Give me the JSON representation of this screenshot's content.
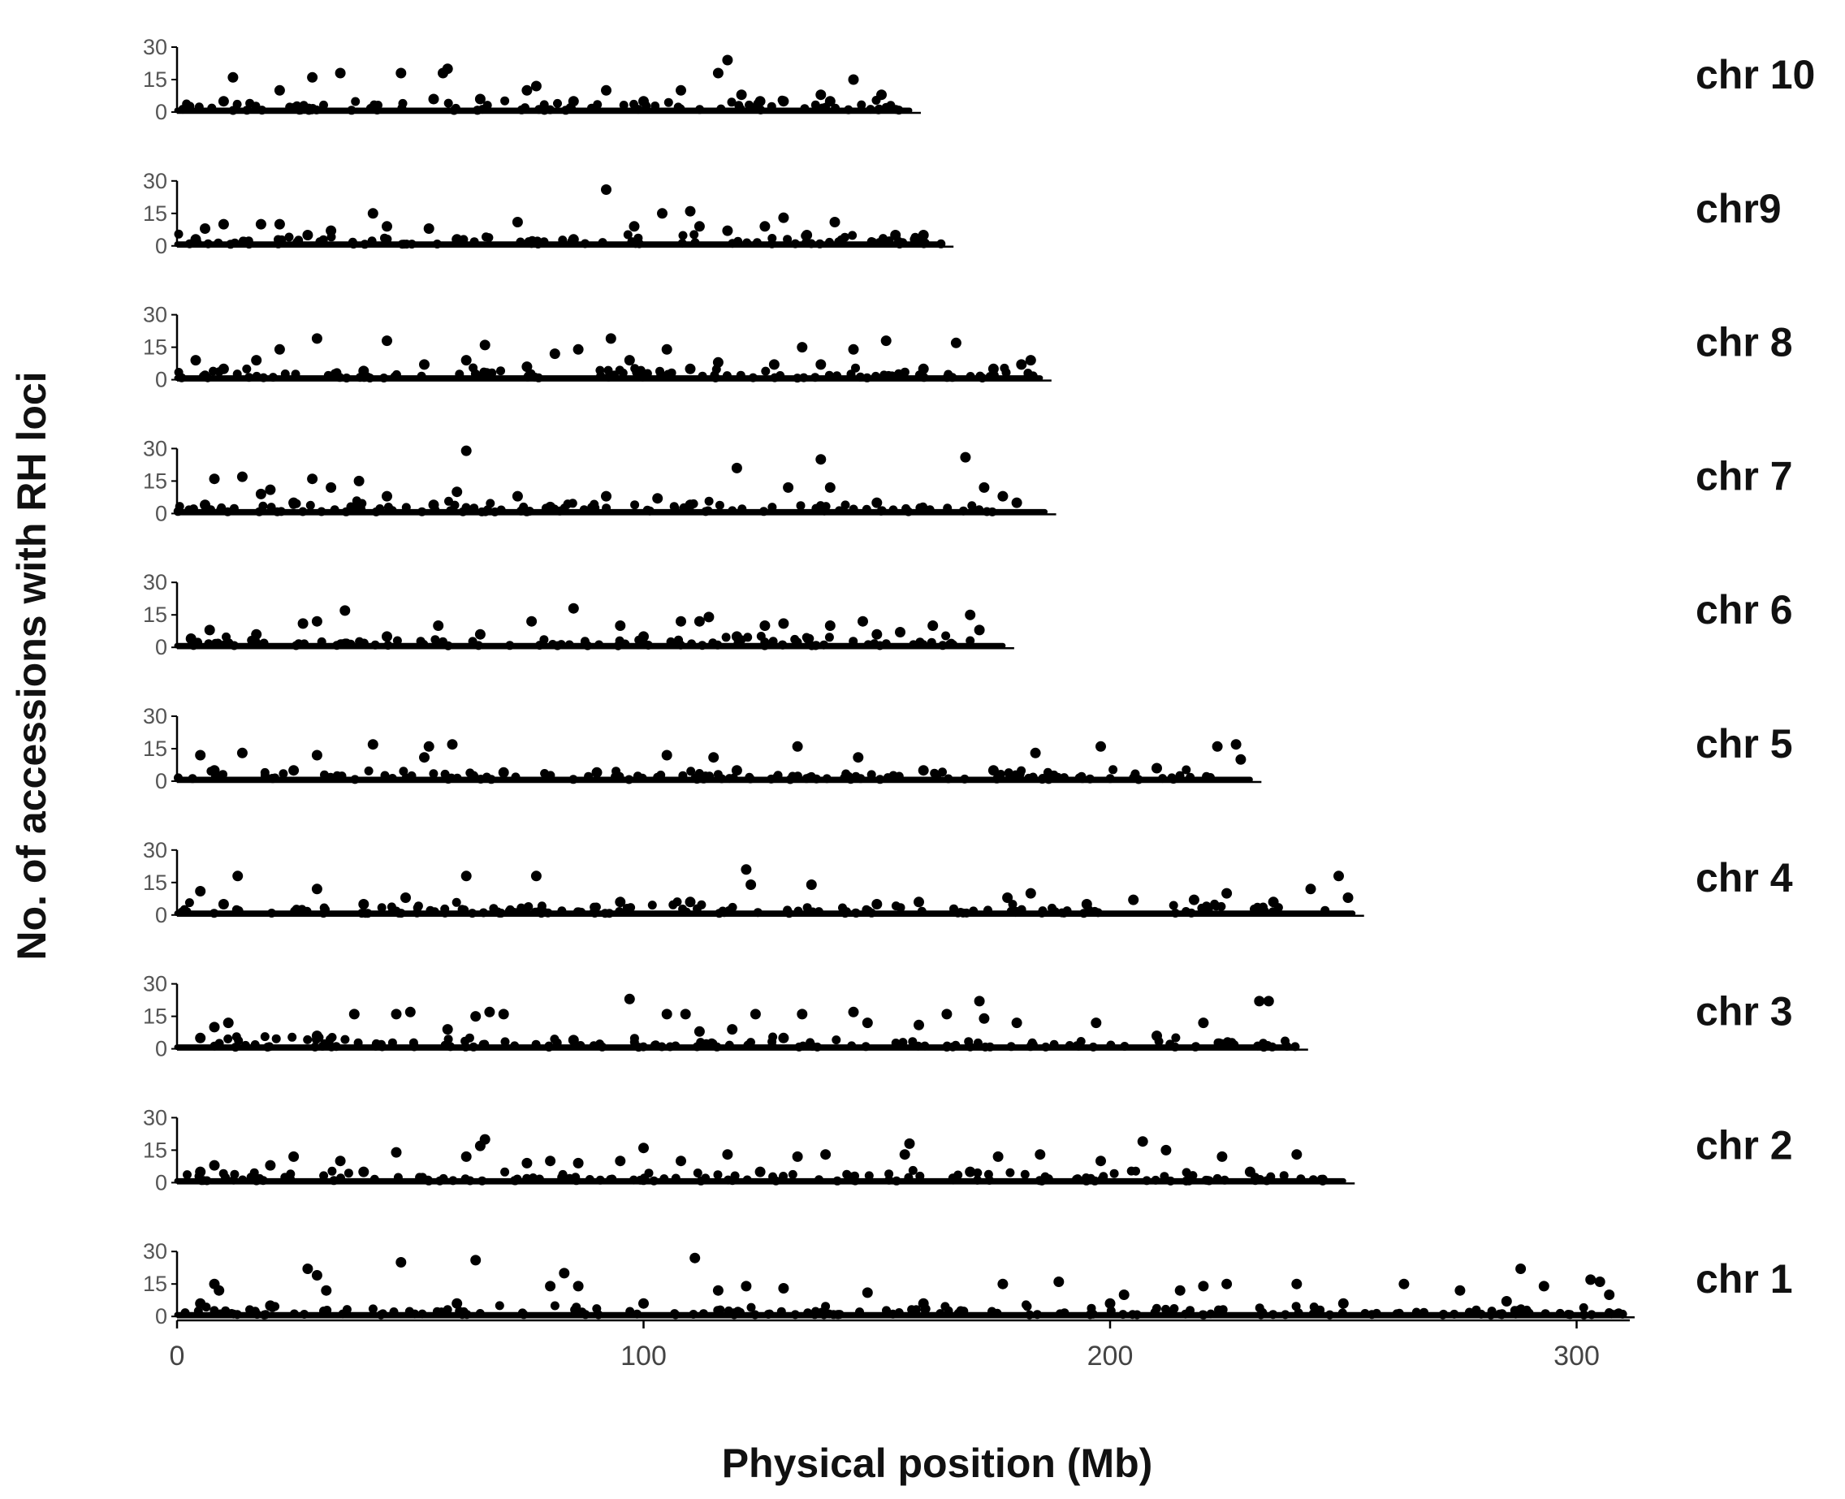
{
  "chart_data": {
    "type": "scatter",
    "xlabel": "Physical position (Mb)",
    "ylabel": "No. of accessions with RH loci",
    "xlim": [
      0,
      310
    ],
    "ylim": [
      0,
      30
    ],
    "x_ticks": [
      "0",
      "100",
      "200",
      "300"
    ],
    "y_ticks": [
      "0",
      "15",
      "30"
    ],
    "grid": false,
    "colors": {
      "point": "#000000",
      "axis": "#000000"
    },
    "series": [
      {
        "name": "chr 10",
        "length": 157,
        "points": [
          [
            12,
            16
          ],
          [
            29,
            16
          ],
          [
            35,
            18
          ],
          [
            48,
            18
          ],
          [
            57,
            18
          ],
          [
            58,
            20
          ],
          [
            116,
            18
          ],
          [
            118,
            24
          ],
          [
            121,
            8
          ],
          [
            145,
            15
          ],
          [
            22,
            10
          ],
          [
            75,
            10
          ],
          [
            77,
            12
          ],
          [
            92,
            10
          ],
          [
            108,
            10
          ],
          [
            130,
            5
          ],
          [
            138,
            8
          ],
          [
            151,
            8
          ],
          [
            10,
            5
          ],
          [
            55,
            6
          ],
          [
            65,
            6
          ],
          [
            85,
            5
          ],
          [
            100,
            5
          ],
          [
            125,
            5
          ],
          [
            140,
            5
          ]
        ]
      },
      {
        "name": "chr9",
        "length": 164,
        "points": [
          [
            6,
            8
          ],
          [
            10,
            10
          ],
          [
            18,
            10
          ],
          [
            22,
            10
          ],
          [
            33,
            7
          ],
          [
            42,
            15
          ],
          [
            45,
            9
          ],
          [
            54,
            8
          ],
          [
            73,
            11
          ],
          [
            92,
            26
          ],
          [
            98,
            9
          ],
          [
            104,
            15
          ],
          [
            110,
            16
          ],
          [
            112,
            9
          ],
          [
            118,
            7
          ],
          [
            126,
            9
          ],
          [
            130,
            13
          ],
          [
            141,
            11
          ],
          [
            154,
            5
          ],
          [
            160,
            5
          ],
          [
            4,
            3
          ],
          [
            28,
            5
          ],
          [
            60,
            3
          ],
          [
            85,
            3
          ],
          [
            135,
            5
          ]
        ]
      },
      {
        "name": "chr 8",
        "length": 185,
        "points": [
          [
            4,
            9
          ],
          [
            17,
            9
          ],
          [
            22,
            14
          ],
          [
            30,
            19
          ],
          [
            45,
            18
          ],
          [
            53,
            7
          ],
          [
            62,
            9
          ],
          [
            66,
            16
          ],
          [
            81,
            12
          ],
          [
            86,
            14
          ],
          [
            93,
            19
          ],
          [
            97,
            9
          ],
          [
            105,
            14
          ],
          [
            116,
            8
          ],
          [
            128,
            7
          ],
          [
            134,
            15
          ],
          [
            138,
            7
          ],
          [
            145,
            14
          ],
          [
            152,
            18
          ],
          [
            167,
            17
          ],
          [
            181,
            7
          ],
          [
            183,
            9
          ],
          [
            10,
            5
          ],
          [
            40,
            4
          ],
          [
            75,
            6
          ],
          [
            110,
            5
          ],
          [
            160,
            5
          ],
          [
            175,
            5
          ]
        ]
      },
      {
        "name": "chr 7",
        "length": 186,
        "points": [
          [
            8,
            16
          ],
          [
            14,
            17
          ],
          [
            18,
            9
          ],
          [
            20,
            11
          ],
          [
            29,
            16
          ],
          [
            33,
            12
          ],
          [
            39,
            15
          ],
          [
            45,
            8
          ],
          [
            60,
            10
          ],
          [
            62,
            29
          ],
          [
            73,
            8
          ],
          [
            92,
            8
          ],
          [
            103,
            7
          ],
          [
            120,
            21
          ],
          [
            131,
            12
          ],
          [
            138,
            25
          ],
          [
            140,
            12
          ],
          [
            169,
            26
          ],
          [
            173,
            12
          ],
          [
            177,
            8
          ],
          [
            6,
            4
          ],
          [
            25,
            5
          ],
          [
            55,
            4
          ],
          [
            80,
            3
          ],
          [
            110,
            4
          ],
          [
            150,
            5
          ],
          [
            180,
            5
          ]
        ]
      },
      {
        "name": "chr 6",
        "length": 177,
        "points": [
          [
            7,
            8
          ],
          [
            17,
            6
          ],
          [
            27,
            11
          ],
          [
            30,
            12
          ],
          [
            36,
            17
          ],
          [
            56,
            10
          ],
          [
            76,
            12
          ],
          [
            85,
            18
          ],
          [
            95,
            10
          ],
          [
            108,
            12
          ],
          [
            112,
            12
          ],
          [
            114,
            14
          ],
          [
            126,
            10
          ],
          [
            130,
            11
          ],
          [
            140,
            10
          ],
          [
            147,
            12
          ],
          [
            155,
            7
          ],
          [
            162,
            10
          ],
          [
            170,
            15
          ],
          [
            172,
            8
          ],
          [
            3,
            4
          ],
          [
            45,
            5
          ],
          [
            65,
            6
          ],
          [
            100,
            5
          ],
          [
            120,
            5
          ],
          [
            150,
            6
          ]
        ]
      },
      {
        "name": "chr 5",
        "length": 230,
        "points": [
          [
            5,
            12
          ],
          [
            14,
            13
          ],
          [
            30,
            12
          ],
          [
            42,
            17
          ],
          [
            53,
            11
          ],
          [
            54,
            16
          ],
          [
            59,
            17
          ],
          [
            105,
            12
          ],
          [
            115,
            11
          ],
          [
            133,
            16
          ],
          [
            146,
            11
          ],
          [
            184,
            13
          ],
          [
            198,
            16
          ],
          [
            223,
            16
          ],
          [
            227,
            17
          ],
          [
            228,
            10
          ],
          [
            8,
            5
          ],
          [
            25,
            5
          ],
          [
            70,
            4
          ],
          [
            90,
            4
          ],
          [
            120,
            5
          ],
          [
            160,
            5
          ],
          [
            175,
            5
          ],
          [
            210,
            6
          ]
        ]
      },
      {
        "name": "chr 4",
        "length": 252,
        "points": [
          [
            5,
            11
          ],
          [
            13,
            18
          ],
          [
            30,
            12
          ],
          [
            49,
            8
          ],
          [
            62,
            18
          ],
          [
            77,
            18
          ],
          [
            122,
            21
          ],
          [
            123,
            14
          ],
          [
            136,
            14
          ],
          [
            159,
            6
          ],
          [
            178,
            8
          ],
          [
            183,
            10
          ],
          [
            205,
            7
          ],
          [
            218,
            7
          ],
          [
            225,
            10
          ],
          [
            243,
            12
          ],
          [
            249,
            18
          ],
          [
            251,
            8
          ],
          [
            10,
            5
          ],
          [
            40,
            5
          ],
          [
            95,
            6
          ],
          [
            110,
            6
          ],
          [
            150,
            5
          ],
          [
            195,
            5
          ],
          [
            235,
            6
          ]
        ]
      },
      {
        "name": "chr 3",
        "length": 240,
        "points": [
          [
            8,
            10
          ],
          [
            11,
            12
          ],
          [
            38,
            16
          ],
          [
            47,
            16
          ],
          [
            50,
            17
          ],
          [
            58,
            9
          ],
          [
            64,
            15
          ],
          [
            67,
            17
          ],
          [
            70,
            16
          ],
          [
            97,
            23
          ],
          [
            105,
            16
          ],
          [
            109,
            16
          ],
          [
            112,
            8
          ],
          [
            119,
            9
          ],
          [
            124,
            16
          ],
          [
            134,
            16
          ],
          [
            145,
            17
          ],
          [
            148,
            12
          ],
          [
            159,
            11
          ],
          [
            165,
            16
          ],
          [
            172,
            22
          ],
          [
            173,
            14
          ],
          [
            180,
            12
          ],
          [
            197,
            12
          ],
          [
            220,
            12
          ],
          [
            232,
            22
          ],
          [
            234,
            22
          ],
          [
            5,
            5
          ],
          [
            30,
            6
          ],
          [
            85,
            4
          ],
          [
            130,
            5
          ],
          [
            210,
            6
          ]
        ]
      },
      {
        "name": "chr 2",
        "length": 250,
        "points": [
          [
            8,
            8
          ],
          [
            20,
            8
          ],
          [
            25,
            12
          ],
          [
            35,
            10
          ],
          [
            47,
            14
          ],
          [
            62,
            12
          ],
          [
            65,
            17
          ],
          [
            66,
            20
          ],
          [
            75,
            9
          ],
          [
            80,
            10
          ],
          [
            86,
            9
          ],
          [
            95,
            10
          ],
          [
            100,
            16
          ],
          [
            108,
            10
          ],
          [
            118,
            13
          ],
          [
            133,
            12
          ],
          [
            139,
            13
          ],
          [
            156,
            13
          ],
          [
            157,
            18
          ],
          [
            176,
            12
          ],
          [
            185,
            13
          ],
          [
            198,
            10
          ],
          [
            207,
            19
          ],
          [
            212,
            15
          ],
          [
            224,
            12
          ],
          [
            240,
            13
          ],
          [
            5,
            5
          ],
          [
            40,
            5
          ],
          [
            125,
            5
          ],
          [
            170,
            5
          ],
          [
            230,
            5
          ]
        ]
      },
      {
        "name": "chr 1",
        "length": 310,
        "points": [
          [
            8,
            15
          ],
          [
            9,
            12
          ],
          [
            28,
            22
          ],
          [
            30,
            19
          ],
          [
            32,
            12
          ],
          [
            48,
            25
          ],
          [
            64,
            26
          ],
          [
            80,
            14
          ],
          [
            83,
            20
          ],
          [
            86,
            14
          ],
          [
            111,
            27
          ],
          [
            116,
            12
          ],
          [
            122,
            14
          ],
          [
            130,
            13
          ],
          [
            148,
            11
          ],
          [
            177,
            15
          ],
          [
            189,
            16
          ],
          [
            203,
            10
          ],
          [
            215,
            12
          ],
          [
            220,
            14
          ],
          [
            225,
            15
          ],
          [
            240,
            15
          ],
          [
            263,
            15
          ],
          [
            275,
            12
          ],
          [
            288,
            22
          ],
          [
            293,
            14
          ],
          [
            303,
            17
          ],
          [
            305,
            16
          ],
          [
            307,
            10
          ],
          [
            5,
            6
          ],
          [
            20,
            5
          ],
          [
            60,
            6
          ],
          [
            100,
            6
          ],
          [
            160,
            6
          ],
          [
            200,
            6
          ],
          [
            250,
            6
          ],
          [
            285,
            7
          ]
        ]
      }
    ]
  }
}
